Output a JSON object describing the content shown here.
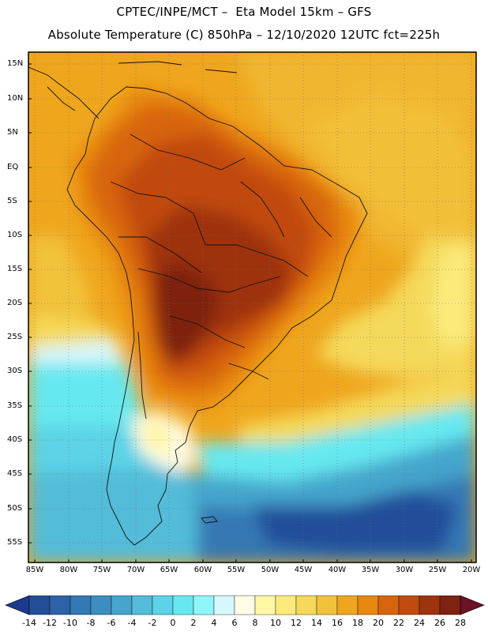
{
  "title_line1": "CPTEC/INPE/MCT –  Eta Model 15km – GFS",
  "title_line2": "Absolute Temperature (C) 850hPa – 12/10/2020 12UTC fct=225h",
  "map": {
    "variable": "Absolute Temperature (C) 850hPa",
    "region": "South America",
    "lat_labels": [
      "15N",
      "10N",
      "5N",
      "EQ",
      "5S",
      "10S",
      "15S",
      "20S",
      "25S",
      "30S",
      "35S",
      "40S",
      "45S",
      "50S",
      "55S"
    ],
    "lon_labels": [
      "85W",
      "80W",
      "75W",
      "70W",
      "65W",
      "60W",
      "55W",
      "50W",
      "45W",
      "40W",
      "35W",
      "30W",
      "25W",
      "20W"
    ]
  },
  "colorbar": {
    "labels": [
      "-14",
      "-12",
      "-10",
      "-8",
      "-6",
      "-4",
      "-2",
      "0",
      "2",
      "4",
      "6",
      "8",
      "10",
      "12",
      "14",
      "16",
      "18",
      "20",
      "22",
      "24",
      "26",
      "28"
    ],
    "colors": [
      "#1c3a8e",
      "#244d9a",
      "#2d62a8",
      "#3478b4",
      "#3b8ebf",
      "#45a5cc",
      "#52bcd9",
      "#5cd3e6",
      "#66e8f0",
      "#8ff5fa",
      "#d8f7fc",
      "#fffbe6",
      "#fff7a6",
      "#fbeb7c",
      "#f5d95a",
      "#f2c23a",
      "#efa61e",
      "#e8870f",
      "#d8650c",
      "#c14a0d",
      "#9e330e",
      "#7e2211",
      "#6a1226"
    ]
  }
}
